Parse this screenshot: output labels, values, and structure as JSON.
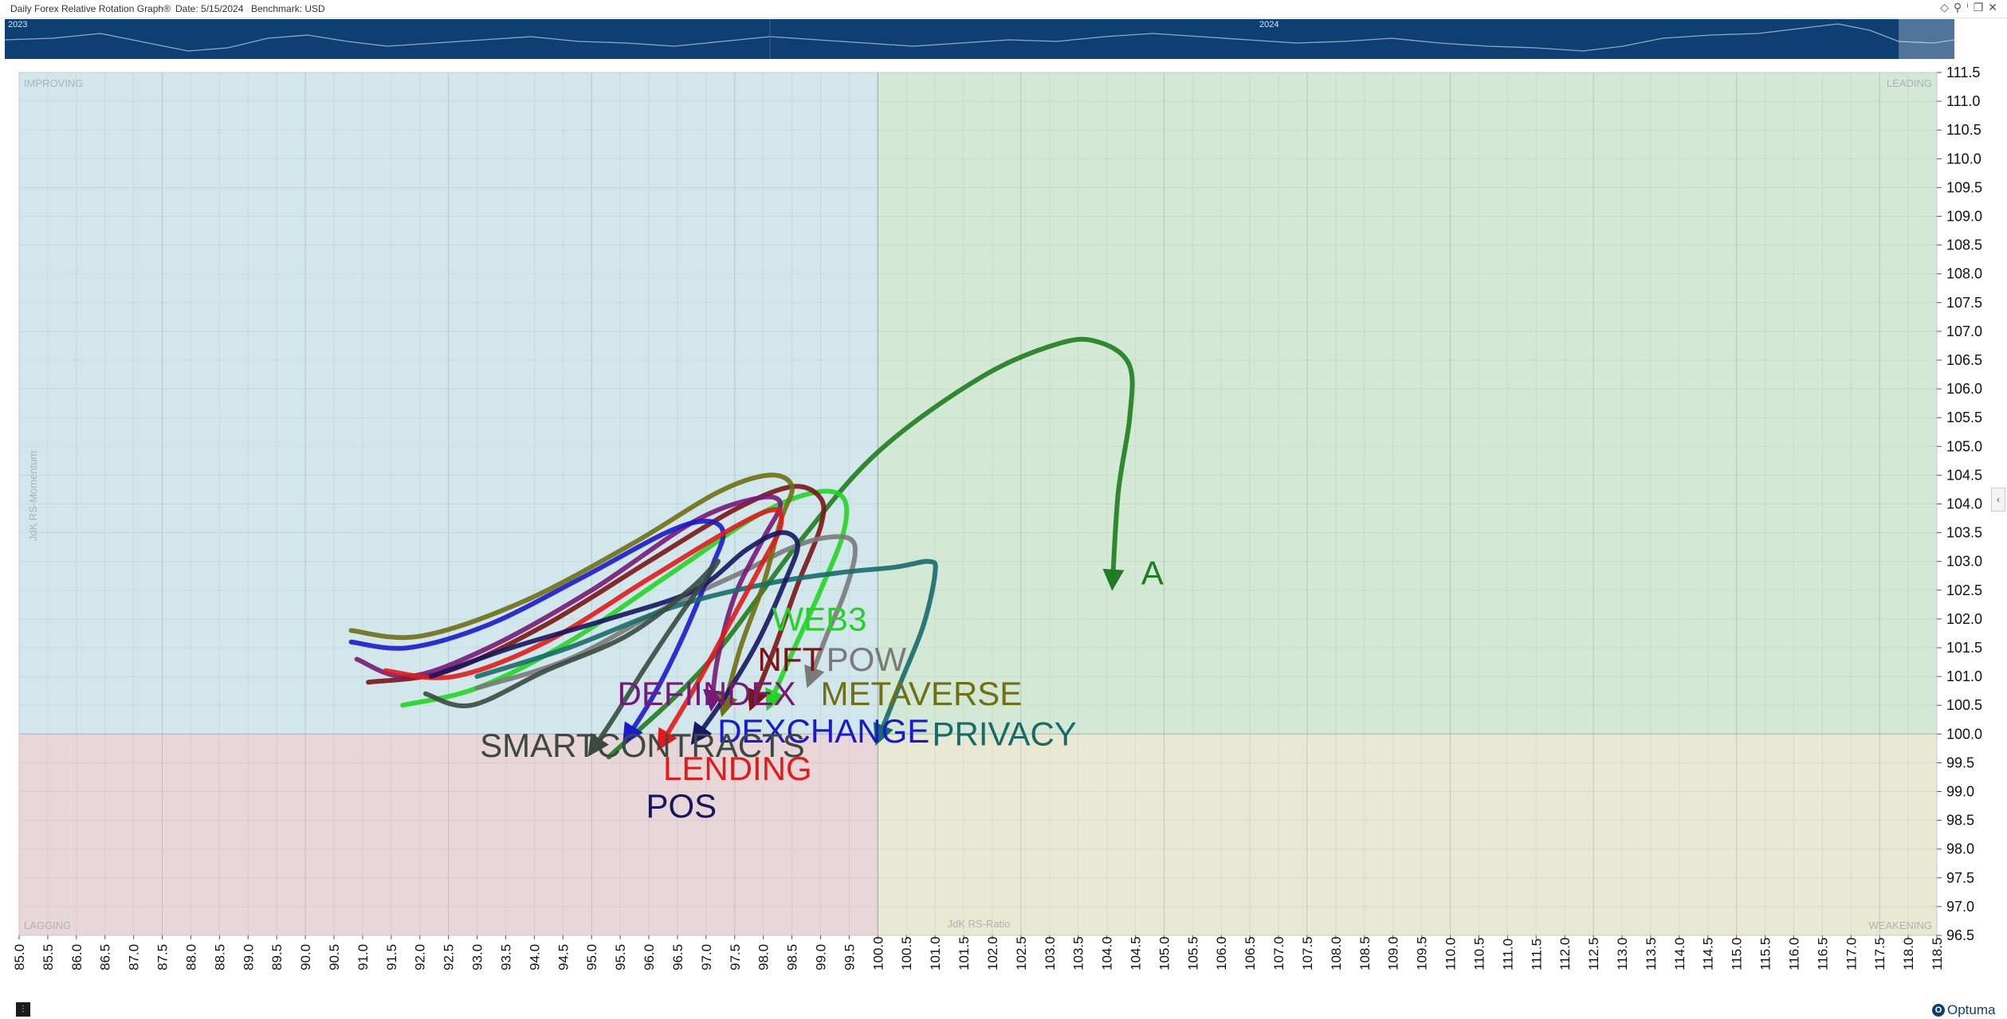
{
  "window": {
    "title": "Daily Forex Relative Rotation Graph®",
    "date": "Date: 5/15/2024",
    "benchmark": "Benchmark:  USD"
  },
  "timeline": {
    "year_left": "2023",
    "year_right": "2024"
  },
  "logo": "Optuma",
  "colors": {
    "improving": "#d1e7ec",
    "leading": "#d3e8d5",
    "lagging": "#e9d6d8",
    "weakening": "#e8e8d3",
    "timeline_bg": "#0e3f73"
  },
  "icons": {
    "window_controls": [
      "diamond-icon",
      "pin-icon",
      "info-icon",
      "restore-icon",
      "close-icon"
    ],
    "side_tab": "chevron-left-icon",
    "footer": "menu-icon",
    "logo": "optuma-logo-icon"
  },
  "chart_data": {
    "type": "scatter",
    "subtype": "relative-rotation-graph",
    "xlabel": "JdK RS-Ratio",
    "ylabel": "JdK RS-Momentum",
    "xlim": [
      85.0,
      118.5
    ],
    "ylim": [
      96.5,
      111.5
    ],
    "x_ticks": [
      "85.0",
      "85.5",
      "86.0",
      "86.5",
      "87.0",
      "87.5",
      "88.0",
      "88.5",
      "89.0",
      "89.5",
      "90.0",
      "90.5",
      "91.0",
      "91.5",
      "92.0",
      "92.5",
      "93.0",
      "93.5",
      "94.0",
      "94.5",
      "95.0",
      "95.5",
      "96.0",
      "96.5",
      "97.0",
      "97.5",
      "98.0",
      "98.5",
      "99.0",
      "99.5",
      "100.0",
      "100.5",
      "101.0",
      "101.5",
      "102.0",
      "102.5",
      "103.0",
      "103.5",
      "104.0",
      "104.5",
      "105.0",
      "105.5",
      "106.0",
      "106.5",
      "107.0",
      "107.5",
      "108.0",
      "108.5",
      "109.0",
      "109.5",
      "110.0",
      "110.5",
      "111.0",
      "111.5",
      "112.0",
      "112.5",
      "113.0",
      "113.5",
      "114.0",
      "114.5",
      "115.0",
      "115.5",
      "116.0",
      "116.5",
      "117.0",
      "117.5",
      "118.0",
      "118.5"
    ],
    "y_ticks": [
      "111.5",
      "111.0",
      "110.5",
      "110.0",
      "109.5",
      "109.0",
      "108.5",
      "108.0",
      "107.5",
      "107.0",
      "106.5",
      "106.0",
      "105.5",
      "105.0",
      "104.5",
      "104.0",
      "103.5",
      "103.0",
      "102.5",
      "102.0",
      "101.5",
      "101.0",
      "100.5",
      "100.0",
      "99.5",
      "99.0",
      "98.5",
      "98.0",
      "97.5",
      "97.0",
      "96.5"
    ],
    "quadrants": {
      "improving": "IMPROVING",
      "leading": "LEADING",
      "lagging": "LAGGING",
      "weakening": "WEAKENING"
    },
    "center": [
      100.0,
      100.0
    ],
    "grid": true,
    "series": [
      {
        "name": "A",
        "color": "#1e7d1e",
        "x": [
          95.3,
          97.0,
          98.6,
          100.0,
          101.8,
          103.2,
          103.9,
          104.4,
          104.4,
          104.2,
          104.1
        ],
        "y": [
          99.6,
          101.2,
          103.3,
          104.9,
          106.2,
          106.8,
          106.8,
          106.4,
          105.5,
          104.2,
          102.6
        ],
        "label_x": 104.6,
        "label_y": 102.6
      },
      {
        "name": "WEB3",
        "color": "#24d424",
        "x": [
          91.7,
          93.0,
          94.6,
          96.4,
          97.9,
          98.9,
          99.4,
          99.4,
          99.0,
          98.5,
          98.1
        ],
        "y": [
          100.5,
          100.8,
          101.6,
          102.8,
          103.8,
          104.2,
          104.1,
          103.5,
          102.5,
          101.4,
          100.5
        ],
        "label_x": 98.15,
        "label_y": 101.8
      },
      {
        "name": "NFT",
        "color": "#7a1515",
        "x": [
          91.1,
          92.5,
          94.2,
          96.0,
          97.5,
          98.5,
          99.0,
          99.0,
          98.6,
          98.2,
          97.8
        ],
        "y": [
          100.9,
          101.1,
          101.9,
          103.0,
          103.9,
          104.3,
          104.1,
          103.6,
          102.6,
          101.5,
          100.5
        ],
        "label_x": 97.9,
        "label_y": 101.1
      },
      {
        "name": "POW",
        "color": "#7a7a7a",
        "x": [
          93.0,
          94.6,
          96.3,
          97.6,
          98.4,
          99.0,
          99.5,
          99.6,
          99.4,
          99.1,
          98.8
        ],
        "y": [
          100.8,
          101.3,
          102.2,
          102.8,
          103.2,
          103.4,
          103.4,
          103.1,
          102.4,
          101.7,
          100.9
        ],
        "label_x": 99.1,
        "label_y": 101.1
      },
      {
        "name": "DEFIINDEX",
        "color": "#751a75",
        "x": [
          90.9,
          91.8,
          93.2,
          95.0,
          96.8,
          97.9,
          98.3,
          98.0,
          97.5,
          97.2,
          97.1
        ],
        "y": [
          101.3,
          101.0,
          101.5,
          102.5,
          103.7,
          104.1,
          104.0,
          103.4,
          102.4,
          101.3,
          100.5
        ],
        "label_x": 95.45,
        "label_y": 100.5
      },
      {
        "name": "METAVERSE",
        "color": "#6f6f14",
        "x": [
          90.8,
          92.0,
          93.8,
          95.7,
          97.2,
          98.1,
          98.5,
          98.3,
          98.0,
          97.6,
          97.3
        ],
        "y": [
          101.8,
          101.7,
          102.3,
          103.3,
          104.2,
          104.5,
          104.3,
          103.7,
          102.6,
          101.5,
          100.4
        ],
        "label_x": 99.0,
        "label_y": 100.5
      },
      {
        "name": "DEXCHANGE",
        "color": "#1a1acc",
        "x": [
          90.8,
          91.8,
          93.2,
          94.8,
          96.3,
          97.0,
          97.3,
          97.1,
          96.6,
          96.1,
          95.6
        ],
        "y": [
          101.6,
          101.5,
          101.9,
          102.7,
          103.5,
          103.7,
          103.5,
          102.9,
          101.7,
          100.7,
          99.9
        ],
        "label_x": 97.2,
        "label_y": 99.85
      },
      {
        "name": "PRIVACY",
        "color": "#176b6b",
        "x": [
          93.0,
          94.6,
          96.4,
          98.0,
          99.3,
          100.3,
          100.9,
          101.0,
          100.8,
          100.4,
          100.0
        ],
        "y": [
          101.0,
          101.5,
          102.2,
          102.6,
          102.8,
          102.9,
          103.0,
          102.8,
          101.9,
          100.9,
          99.9
        ],
        "label_x": 100.95,
        "label_y": 99.8
      },
      {
        "name": "LENDING",
        "color": "#e01b1b",
        "x": [
          91.4,
          92.6,
          94.2,
          96.0,
          97.5,
          98.2,
          98.3,
          98.0,
          97.4,
          96.8,
          96.2
        ],
        "y": [
          101.1,
          101.0,
          101.6,
          102.7,
          103.6,
          103.9,
          103.6,
          103.0,
          101.9,
          100.8,
          99.8
        ],
        "label_x": 96.25,
        "label_y": 99.2
      },
      {
        "name": "POS",
        "color": "#161661",
        "x": [
          92.2,
          93.6,
          95.3,
          96.8,
          97.7,
          98.3,
          98.6,
          98.4,
          97.9,
          97.3,
          96.8
        ],
        "y": [
          101.0,
          101.5,
          102.0,
          102.5,
          103.2,
          103.5,
          103.3,
          102.7,
          101.6,
          100.6,
          99.9
        ],
        "label_x": 95.95,
        "label_y": 98.55
      },
      {
        "name": "SMARTCONTRACTS",
        "color": "#3a4a40",
        "x": [
          92.1,
          92.9,
          94.2,
          95.6,
          96.7,
          97.2,
          97.0,
          96.5,
          95.9,
          95.4,
          95.0
        ],
        "y": [
          100.7,
          100.5,
          101.1,
          101.7,
          102.5,
          103.0,
          102.7,
          102.0,
          101.1,
          100.3,
          99.7
        ],
        "label_x": 93.05,
        "label_y": 99.6
      }
    ]
  }
}
